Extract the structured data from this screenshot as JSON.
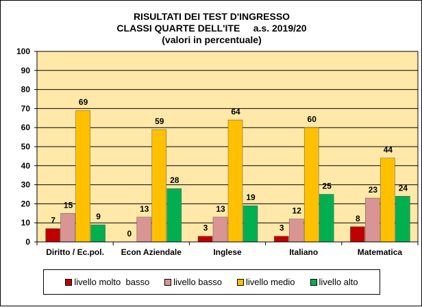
{
  "chart_data": {
    "type": "bar",
    "title": [
      "RISULTATI DEI TEST D'INGRESSO",
      "CLASSI QUARTE DELL'ITE     a.s. 2019/20",
      "(valori in percentuale)"
    ],
    "xlabel": "",
    "ylabel": "",
    "ylim": [
      0,
      100
    ],
    "yticks": [
      0,
      10,
      20,
      30,
      40,
      50,
      60,
      70,
      80,
      90,
      100
    ],
    "grid": true,
    "legend_position": "bottom",
    "plot_background": "#FFE8A8",
    "categories": [
      "Diritto / Ec.pol.",
      "Econ Aziendale",
      "Inglese",
      "Italiano",
      "Matematica"
    ],
    "series": [
      {
        "name": "livello molto  basso",
        "color": "#C00000",
        "values": [
          7,
          0,
          3,
          3,
          8
        ]
      },
      {
        "name": "livello basso",
        "color": "#D99594",
        "values": [
          15,
          13,
          13,
          12,
          23
        ]
      },
      {
        "name": "livello medio",
        "color": "#FFC000",
        "values": [
          69,
          59,
          64,
          60,
          44
        ]
      },
      {
        "name": "livello alto",
        "color": "#00B050",
        "values": [
          9,
          28,
          19,
          25,
          24
        ]
      }
    ]
  }
}
